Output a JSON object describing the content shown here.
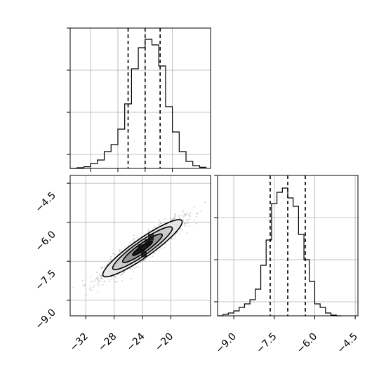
{
  "chart_data": {
    "type": "corner",
    "title": "",
    "param_labels": [
      "",
      ""
    ],
    "grid": true,
    "panels": [
      {
        "id": "hist-x",
        "type": "histogram",
        "xlim": [
          -35,
          -14.4
        ],
        "ylim": [
          0,
          1.0
        ],
        "bin_edges": [
          -35,
          -34,
          -33,
          -32,
          -31,
          -30,
          -29,
          -28,
          -27,
          -26,
          -25,
          -24,
          -23,
          -22,
          -21,
          -20,
          -19,
          -18,
          -17,
          -16,
          -15
        ],
        "counts": [
          0.0,
          0.005,
          0.012,
          0.035,
          0.06,
          0.12,
          0.17,
          0.28,
          0.46,
          0.71,
          0.86,
          0.92,
          0.88,
          0.73,
          0.44,
          0.26,
          0.12,
          0.05,
          0.02,
          0.008
        ],
        "quantiles": [
          -26.5,
          -24.0,
          -21.8
        ]
      },
      {
        "id": "hist-y",
        "type": "histogram",
        "xlim": [
          -9.6,
          -4.4
        ],
        "ylim": [
          0,
          1.0
        ],
        "bin_edges": [
          -9.6,
          -9.4,
          -9.2,
          -9.0,
          -8.8,
          -8.6,
          -8.4,
          -8.2,
          -8.0,
          -7.8,
          -7.6,
          -7.4,
          -7.2,
          -7.0,
          -6.8,
          -6.6,
          -6.4,
          -6.2,
          -6.0,
          -5.8,
          -5.6,
          -5.4,
          -5.2,
          -5.0
        ],
        "counts": [
          0.0,
          0.01,
          0.02,
          0.035,
          0.06,
          0.085,
          0.115,
          0.19,
          0.36,
          0.54,
          0.8,
          0.88,
          0.91,
          0.84,
          0.78,
          0.58,
          0.4,
          0.245,
          0.085,
          0.06,
          0.02,
          0.005,
          0.0
        ],
        "quantiles": [
          -7.65,
          -7.0,
          -6.35
        ]
      },
      {
        "id": "scatter-2d",
        "type": "density-contour",
        "xlim": [
          -34.2,
          -14.4
        ],
        "ylim": [
          -9.6,
          -4.2
        ],
        "center": [
          -24.0,
          -7.0
        ],
        "x_sd": 2.8,
        "y_sd": 0.55,
        "correlation": 0.92,
        "n_points": 1500,
        "contour_levels_sigma": [
          0.5,
          1.0,
          1.5,
          2.0
        ],
        "colors": {
          "points": "#9a9a9a",
          "outer_fill": "#e6e6e6",
          "mid_fill": "#c8c8c8",
          "inner_fill": "#8c8c8c",
          "core": "#101010"
        }
      }
    ],
    "axes": {
      "scatter_x_ticks": [
        -32,
        -28,
        -24,
        -20
      ],
      "scatter_x_tick_labels": [
        "−32",
        "−28",
        "−24",
        "−20"
      ],
      "scatter_y_ticks": [
        -9.0,
        -7.5,
        -6.0,
        -4.5
      ],
      "scatter_y_tick_labels": [
        "−9.0",
        "−7.5",
        "−6.0",
        "−4.5"
      ],
      "hist_y_x_ticks": [
        -9.0,
        -7.5,
        -6.0,
        -4.5
      ],
      "hist_y_x_tick_labels": [
        "−9.0",
        "−7.5",
        "−6.0",
        "−4.5"
      ],
      "hist_density_ticks": [
        0.1,
        0.4,
        0.7,
        1.0
      ]
    }
  }
}
